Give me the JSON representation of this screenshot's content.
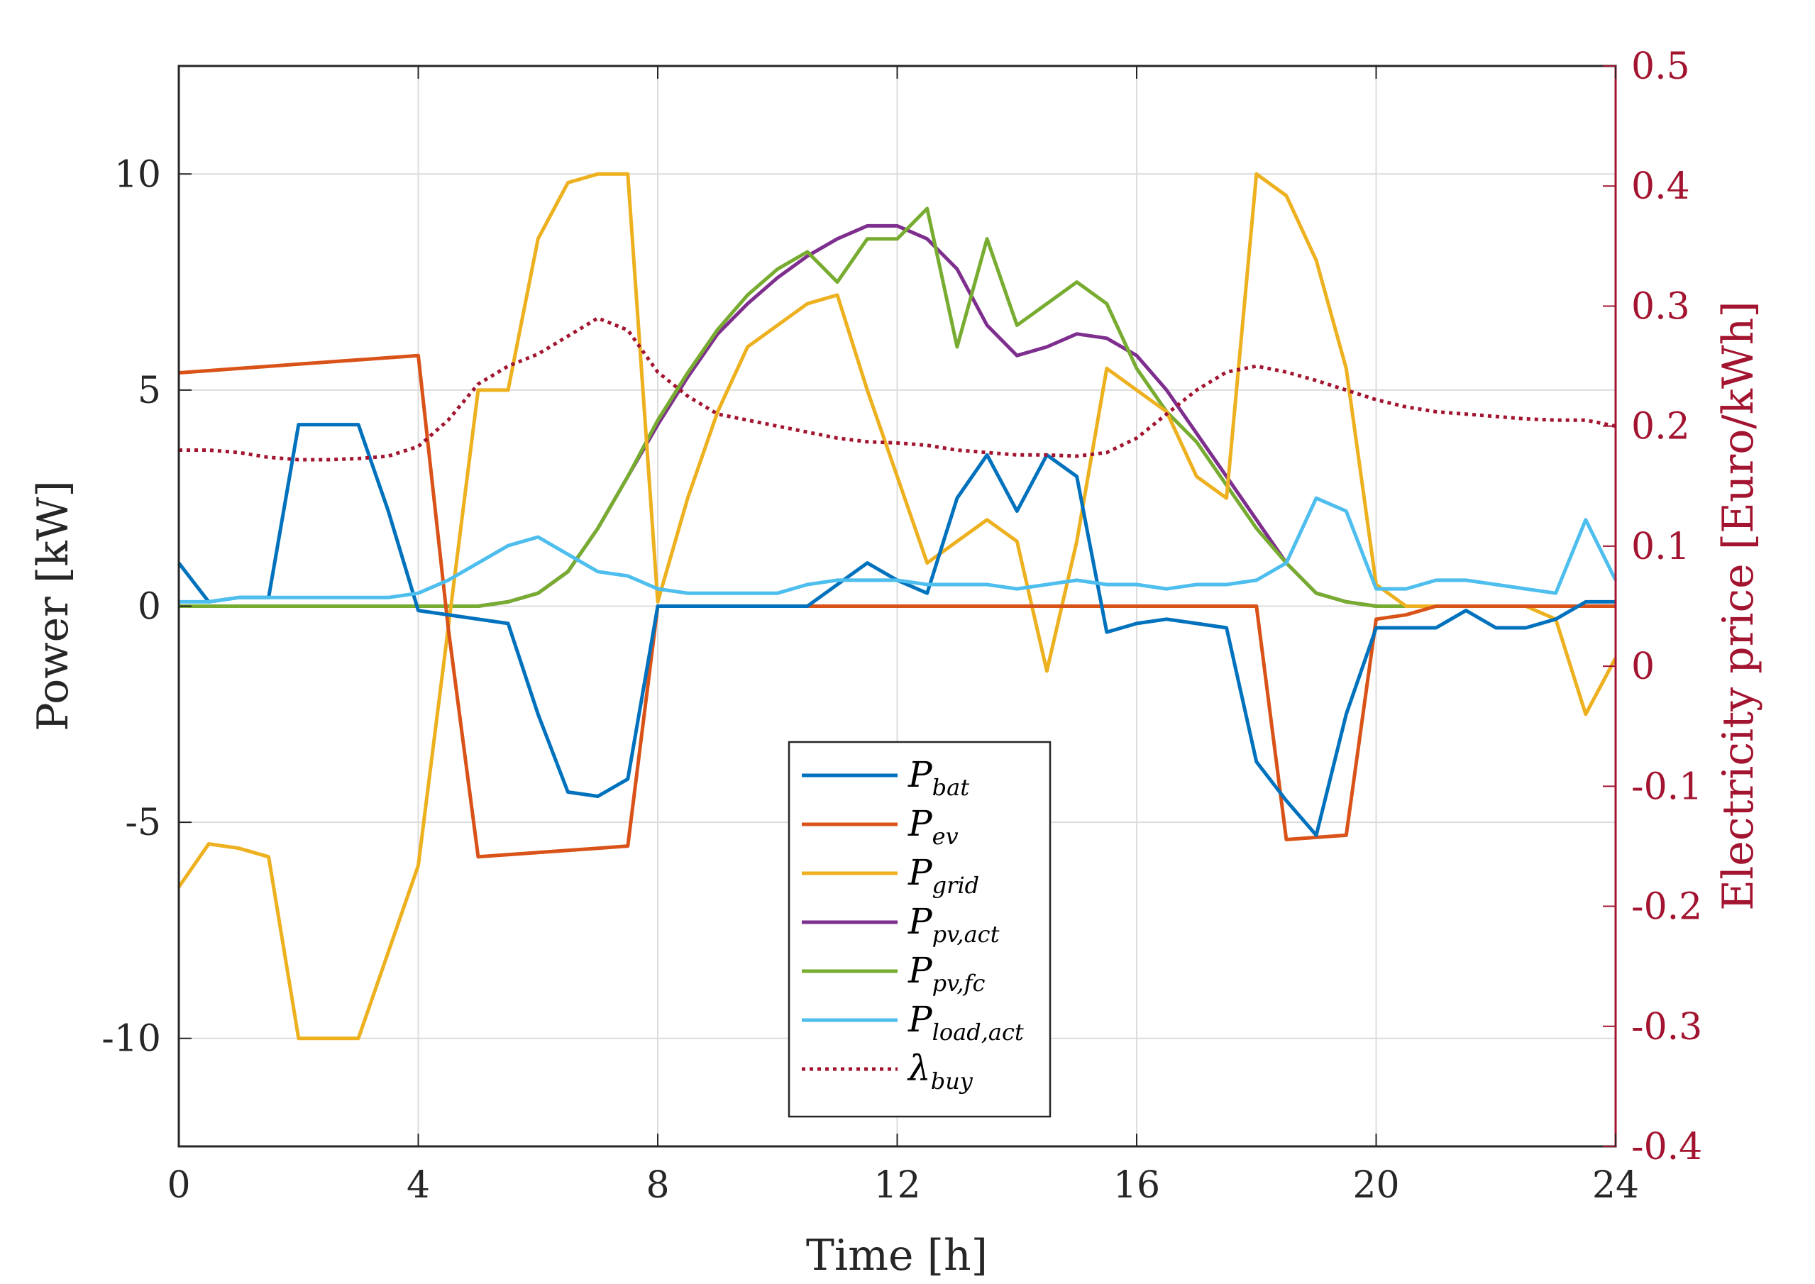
{
  "chart_data": {
    "type": "line",
    "x": [
      0,
      0.5,
      1,
      1.5,
      2,
      2.5,
      3,
      3.5,
      4,
      4.5,
      5,
      5.5,
      6,
      6.5,
      7,
      7.5,
      8,
      8.5,
      9,
      9.5,
      10,
      10.5,
      11,
      11.5,
      12,
      12.5,
      13,
      13.5,
      14,
      14.5,
      15,
      15.5,
      16,
      16.5,
      17,
      17.5,
      18,
      18.5,
      19,
      19.5,
      20,
      20.5,
      21,
      21.5,
      22,
      22.5,
      23,
      23.5,
      24
    ],
    "xlabel": "Time [h]",
    "xlim": [
      0,
      24
    ],
    "xticks": [
      "0",
      "4",
      "8",
      "12",
      "16",
      "20",
      "24"
    ],
    "ylabel_left": "Power [kW]",
    "ylim_left": [
      -12.5,
      12.5
    ],
    "yticks_left": [
      "10",
      "5",
      "0",
      "-5",
      "-10"
    ],
    "ylabel_right": "Electricity price [Euro/kWh]",
    "ylim_right": [
      -0.4,
      0.5
    ],
    "yticks_right": [
      "0.5",
      "0.4",
      "0.3",
      "0.2",
      "0.1",
      "0",
      "-0.1",
      "-0.2",
      "-0.3",
      "-0.4"
    ],
    "grid": true,
    "legend_position": "bottom-center",
    "series": [
      {
        "name": "P_bat",
        "label_main": "P",
        "label_sub": "bat",
        "color": "#0072bd",
        "axis": "left",
        "style": "solid",
        "values": [
          1.0,
          0.1,
          0.2,
          0.2,
          4.2,
          4.2,
          4.2,
          2.2,
          -0.1,
          -0.2,
          -0.3,
          -0.4,
          -2.5,
          -4.3,
          -4.4,
          -4.0,
          0,
          0,
          0,
          0,
          0,
          0,
          0.5,
          1.0,
          0.6,
          0.3,
          2.5,
          3.5,
          2.2,
          3.5,
          3.0,
          -0.6,
          -0.4,
          -0.3,
          -0.4,
          -0.5,
          -3.6,
          -4.5,
          -5.3,
          -2.5,
          -0.5,
          -0.5,
          -0.5,
          -0.1,
          -0.5,
          -0.5,
          -0.3,
          0.1,
          0.1
        ]
      },
      {
        "name": "P_ev",
        "label_main": "P",
        "label_sub": "ev",
        "color": "#d95319",
        "axis": "left",
        "style": "solid",
        "values": [
          5.4,
          5.45,
          5.5,
          5.55,
          5.6,
          5.65,
          5.7,
          5.75,
          5.8,
          -0.5,
          -5.8,
          -5.75,
          -5.7,
          -5.65,
          -5.6,
          -5.55,
          0,
          0,
          0,
          0,
          0,
          0,
          0,
          0,
          0,
          0,
          0,
          0,
          0,
          0,
          0,
          0,
          0,
          0,
          0,
          0,
          0,
          -5.4,
          -5.35,
          -5.3,
          -0.3,
          -0.2,
          0,
          0,
          0,
          0,
          0,
          0,
          0
        ]
      },
      {
        "name": "P_grid",
        "label_main": "P",
        "label_sub": "grid",
        "color": "#edb120",
        "axis": "left",
        "style": "solid",
        "values": [
          -6.5,
          -5.5,
          -5.6,
          -5.8,
          -10.0,
          -10.0,
          -10.0,
          -8.0,
          -6.0,
          -0.5,
          5.0,
          5.0,
          8.5,
          9.8,
          10.0,
          10.0,
          0.1,
          2.5,
          4.5,
          6.0,
          6.5,
          7.0,
          7.2,
          5.0,
          3.0,
          1.0,
          1.5,
          2.0,
          1.5,
          -1.5,
          1.5,
          5.5,
          5.0,
          4.5,
          3.0,
          2.5,
          10.0,
          9.5,
          8.0,
          5.5,
          0.5,
          0,
          0,
          0,
          0,
          0,
          -0.3,
          -2.5,
          -1.2
        ]
      },
      {
        "name": "P_pv,act",
        "label_main": "P",
        "label_sub": "pv,act",
        "color": "#7e2f8e",
        "axis": "left",
        "style": "solid",
        "values": [
          0,
          0,
          0,
          0,
          0,
          0,
          0,
          0,
          0,
          0,
          0,
          0.1,
          0.3,
          0.8,
          1.8,
          3.0,
          4.2,
          5.3,
          6.3,
          7.0,
          7.6,
          8.1,
          8.5,
          8.8,
          8.8,
          8.5,
          7.8,
          6.5,
          5.8,
          6.0,
          6.3,
          6.2,
          5.8,
          5.0,
          4.0,
          3.0,
          2.0,
          1.0,
          0.3,
          0.1,
          0,
          0,
          0,
          0,
          0,
          0,
          0,
          0,
          0
        ]
      },
      {
        "name": "P_pv,fc",
        "label_main": "P",
        "label_sub": "pv,fc",
        "color": "#77ac30",
        "axis": "left",
        "style": "solid",
        "values": [
          0,
          0,
          0,
          0,
          0,
          0,
          0,
          0,
          0,
          0,
          0,
          0.1,
          0.3,
          0.8,
          1.8,
          3.0,
          4.3,
          5.4,
          6.4,
          7.2,
          7.8,
          8.2,
          7.5,
          8.5,
          8.5,
          9.2,
          6.0,
          8.5,
          6.5,
          7.0,
          7.5,
          7.0,
          5.5,
          4.5,
          3.8,
          2.8,
          1.8,
          1.0,
          0.3,
          0.1,
          0,
          0,
          0,
          0,
          0,
          0,
          0,
          0,
          0
        ]
      },
      {
        "name": "P_load,act",
        "label_main": "P",
        "label_sub": "load,act",
        "color": "#4dbeee",
        "axis": "left",
        "style": "solid",
        "values": [
          0.1,
          0.1,
          0.2,
          0.2,
          0.2,
          0.2,
          0.2,
          0.2,
          0.3,
          0.6,
          1.0,
          1.4,
          1.6,
          1.2,
          0.8,
          0.7,
          0.4,
          0.3,
          0.3,
          0.3,
          0.3,
          0.5,
          0.6,
          0.6,
          0.6,
          0.5,
          0.5,
          0.5,
          0.4,
          0.5,
          0.6,
          0.5,
          0.5,
          0.4,
          0.5,
          0.5,
          0.6,
          1.0,
          2.5,
          2.2,
          0.4,
          0.4,
          0.6,
          0.6,
          0.5,
          0.4,
          0.3,
          2.0,
          0.6
        ]
      },
      {
        "name": "lambda_buy",
        "label_main": "λ",
        "label_sub": "buy",
        "color": "#a2142f",
        "axis": "right",
        "style": "dotted",
        "values": [
          0.18,
          0.18,
          0.178,
          0.174,
          0.172,
          0.172,
          0.173,
          0.175,
          0.183,
          0.205,
          0.235,
          0.25,
          0.26,
          0.275,
          0.29,
          0.28,
          0.245,
          0.225,
          0.21,
          0.205,
          0.2,
          0.195,
          0.19,
          0.187,
          0.186,
          0.184,
          0.18,
          0.178,
          0.176,
          0.176,
          0.175,
          0.178,
          0.19,
          0.21,
          0.23,
          0.245,
          0.25,
          0.245,
          0.238,
          0.23,
          0.222,
          0.216,
          0.212,
          0.21,
          0.208,
          0.206,
          0.205,
          0.205,
          0.2
        ]
      }
    ]
  }
}
